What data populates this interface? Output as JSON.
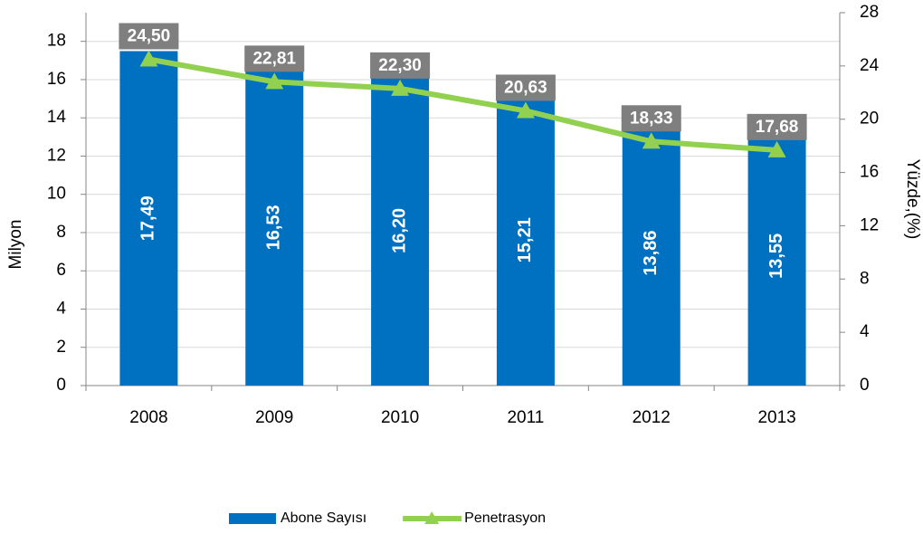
{
  "chart_data": {
    "type": "bar",
    "categories": [
      "2008",
      "2009",
      "2010",
      "2011",
      "2012",
      "2013"
    ],
    "series": [
      {
        "name": "Abone Sayısı",
        "type": "bar",
        "color": "#0070C0",
        "values": [
          17.49,
          16.53,
          16.2,
          15.21,
          13.86,
          13.55
        ],
        "value_labels": [
          "17,49",
          "16,53",
          "16,20",
          "15,21",
          "13,86",
          "13,55"
        ]
      },
      {
        "name": "Penetrasyon",
        "type": "line",
        "axis": "y2",
        "color": "#92D050",
        "values": [
          24.5,
          22.81,
          22.3,
          20.63,
          18.33,
          17.68
        ],
        "value_labels": [
          "24,50",
          "22,81",
          "22,30",
          "20,63",
          "18,33",
          "17,68"
        ]
      }
    ],
    "ylabel": "Milyon",
    "y2label": "Yüzde,(%)",
    "ylim": [
      0,
      19.5
    ],
    "yticks": [
      0,
      2,
      4,
      6,
      8,
      10,
      12,
      14,
      16,
      18
    ],
    "y2lim": [
      0,
      28
    ],
    "y2ticks": [
      0,
      4,
      8,
      12,
      16,
      20,
      24,
      28
    ],
    "grid": true,
    "legend": "bottom"
  }
}
